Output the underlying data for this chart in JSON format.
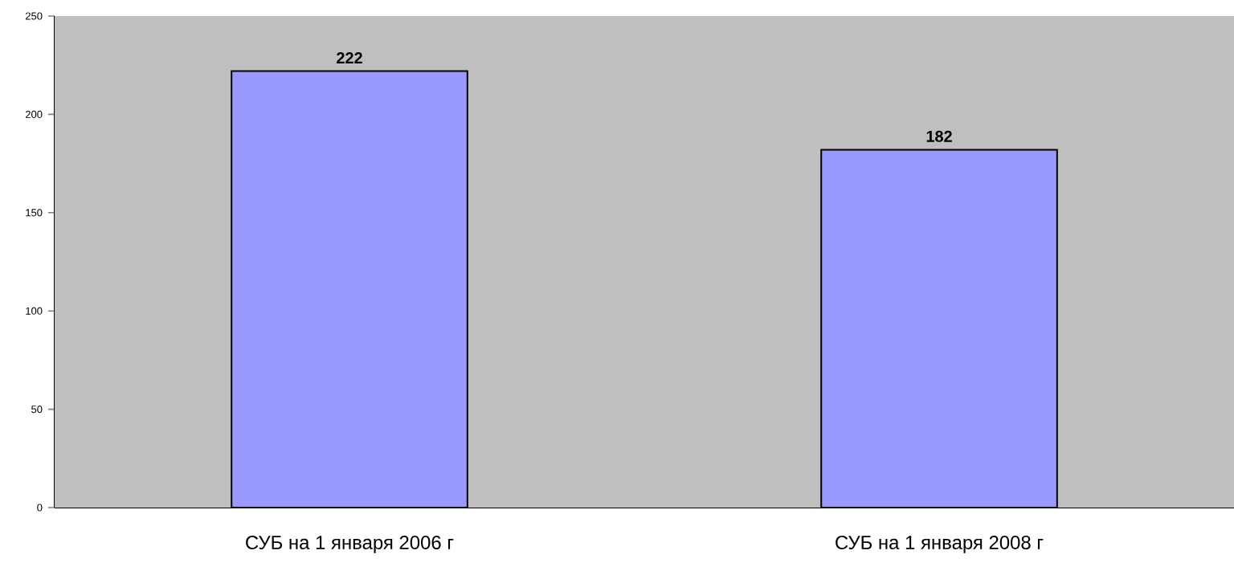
{
  "chart_data": {
    "type": "bar",
    "categories": [
      "СУБ на 1 января 2006 г",
      "СУБ на 1 января 2008 г"
    ],
    "values": [
      222,
      182
    ],
    "color": "#9999ff",
    "ylim": [
      0,
      250
    ],
    "yticks": [
      0,
      50,
      100,
      150,
      200,
      250
    ],
    "data_labels": true,
    "grid": false
  }
}
